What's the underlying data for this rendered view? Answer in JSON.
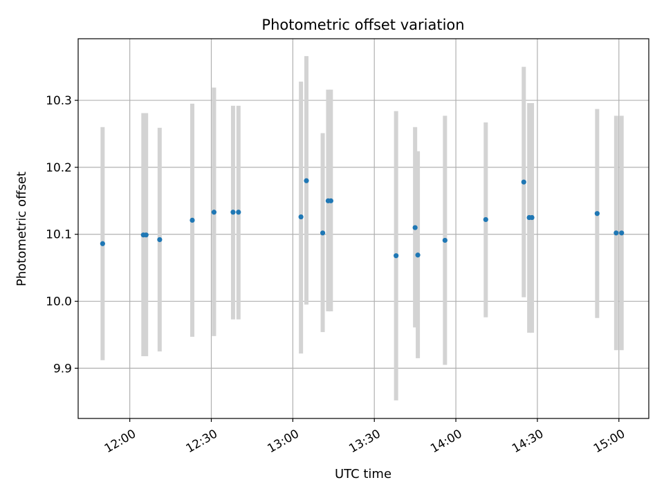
{
  "chart_data": {
    "type": "scatter",
    "title": "Photometric offset variation",
    "xlabel": "UTC time",
    "ylabel": "Photometric offset",
    "x_ticks": [
      "12:00",
      "12:30",
      "13:00",
      "13:30",
      "14:00",
      "14:30",
      "15:00"
    ],
    "y_ticks": [
      "9.9",
      "10.0",
      "10.1",
      "10.2",
      "10.3"
    ],
    "xlim": [
      "11:41",
      "15:11"
    ],
    "ylim": [
      9.825,
      10.392
    ],
    "grid": true,
    "marker_color": "#1f77b4",
    "errorbar_color": "#d3d3d3",
    "points": [
      {
        "t": "11:50",
        "y": 10.086,
        "lo": 9.912,
        "hi": 10.26
      },
      {
        "t": "12:05",
        "y": 10.099,
        "lo": 9.918,
        "hi": 10.281
      },
      {
        "t": "12:06",
        "y": 10.099,
        "lo": 9.918,
        "hi": 10.281
      },
      {
        "t": "12:11",
        "y": 10.092,
        "lo": 9.925,
        "hi": 10.259
      },
      {
        "t": "12:23",
        "y": 10.121,
        "lo": 9.947,
        "hi": 10.295
      },
      {
        "t": "12:31",
        "y": 10.133,
        "lo": 9.948,
        "hi": 10.319
      },
      {
        "t": "12:38",
        "y": 10.133,
        "lo": 9.973,
        "hi": 10.292
      },
      {
        "t": "12:40",
        "y": 10.133,
        "lo": 9.973,
        "hi": 10.292
      },
      {
        "t": "13:03",
        "y": 10.126,
        "lo": 9.922,
        "hi": 10.328
      },
      {
        "t": "13:05",
        "y": 10.18,
        "lo": 9.995,
        "hi": 10.366
      },
      {
        "t": "13:11",
        "y": 10.102,
        "lo": 9.954,
        "hi": 10.251
      },
      {
        "t": "13:13",
        "y": 10.15,
        "lo": 9.985,
        "hi": 10.316
      },
      {
        "t": "13:14",
        "y": 10.15,
        "lo": 9.985,
        "hi": 10.316
      },
      {
        "t": "13:38",
        "y": 10.068,
        "lo": 9.852,
        "hi": 10.284
      },
      {
        "t": "13:45",
        "y": 10.11,
        "lo": 9.961,
        "hi": 10.26
      },
      {
        "t": "13:46",
        "y": 10.069,
        "lo": 9.915,
        "hi": 10.224
      },
      {
        "t": "13:56",
        "y": 10.091,
        "lo": 9.905,
        "hi": 10.277
      },
      {
        "t": "14:11",
        "y": 10.122,
        "lo": 9.976,
        "hi": 10.267
      },
      {
        "t": "14:25",
        "y": 10.178,
        "lo": 10.006,
        "hi": 10.35
      },
      {
        "t": "14:27",
        "y": 10.125,
        "lo": 9.953,
        "hi": 10.296
      },
      {
        "t": "14:28",
        "y": 10.125,
        "lo": 9.953,
        "hi": 10.296
      },
      {
        "t": "14:52",
        "y": 10.131,
        "lo": 9.975,
        "hi": 10.287
      },
      {
        "t": "14:59",
        "y": 10.102,
        "lo": 9.927,
        "hi": 10.277
      },
      {
        "t": "15:01",
        "y": 10.102,
        "lo": 9.927,
        "hi": 10.277
      }
    ]
  }
}
